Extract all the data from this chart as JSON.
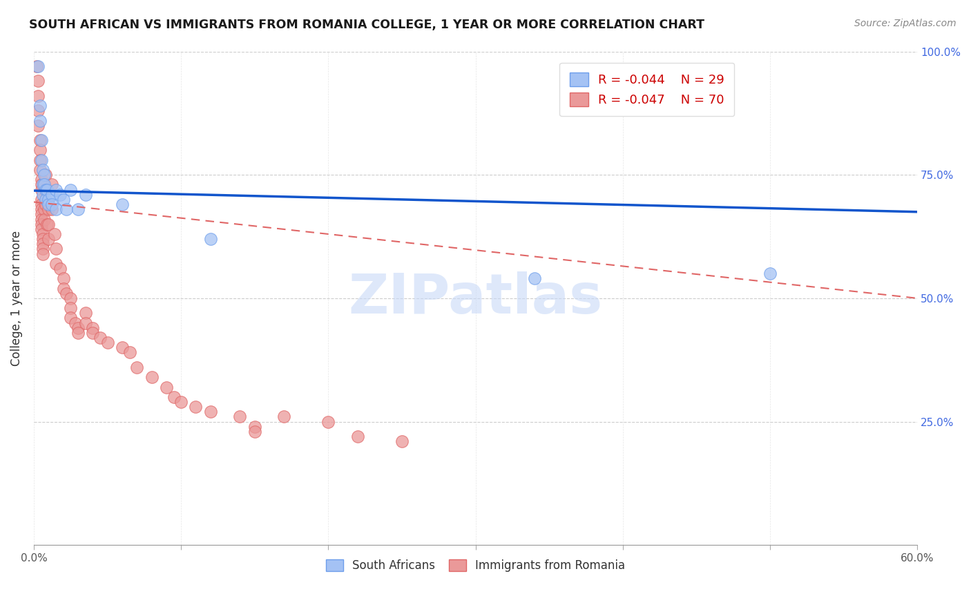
{
  "title": "SOUTH AFRICAN VS IMMIGRANTS FROM ROMANIA COLLEGE, 1 YEAR OR MORE CORRELATION CHART",
  "source": "Source: ZipAtlas.com",
  "ylabel": "College, 1 year or more",
  "xlim": [
    0.0,
    0.6
  ],
  "ylim": [
    0.0,
    1.0
  ],
  "xtick_positions": [
    0.0,
    0.1,
    0.2,
    0.3,
    0.4,
    0.5,
    0.6
  ],
  "xtick_labels": [
    "0.0%",
    "",
    "",
    "",
    "",
    "",
    "60.0%"
  ],
  "ytick_labels_right": [
    "100.0%",
    "75.0%",
    "50.0%",
    "25.0%"
  ],
  "ytick_positions_right": [
    1.0,
    0.75,
    0.5,
    0.25
  ],
  "legend_blue_r": "-0.044",
  "legend_blue_n": "29",
  "legend_pink_r": "-0.047",
  "legend_pink_n": "70",
  "legend_label_blue": "South Africans",
  "legend_label_pink": "Immigrants from Romania",
  "blue_fill_color": "#a4c2f4",
  "blue_edge_color": "#6d9eeb",
  "pink_fill_color": "#ea9999",
  "pink_edge_color": "#e06666",
  "blue_line_color": "#1155cc",
  "pink_line_color": "#e06666",
  "watermark_text": "ZIPatlas",
  "watermark_color": "#c9daf8",
  "blue_scatter": [
    [
      0.003,
      0.97
    ],
    [
      0.004,
      0.89
    ],
    [
      0.004,
      0.86
    ],
    [
      0.005,
      0.82
    ],
    [
      0.005,
      0.78
    ],
    [
      0.006,
      0.76
    ],
    [
      0.006,
      0.73
    ],
    [
      0.006,
      0.71
    ],
    [
      0.007,
      0.75
    ],
    [
      0.007,
      0.73
    ],
    [
      0.008,
      0.72
    ],
    [
      0.008,
      0.7
    ],
    [
      0.009,
      0.72
    ],
    [
      0.01,
      0.7
    ],
    [
      0.01,
      0.69
    ],
    [
      0.012,
      0.71
    ],
    [
      0.012,
      0.69
    ],
    [
      0.015,
      0.68
    ],
    [
      0.015,
      0.72
    ],
    [
      0.018,
      0.71
    ],
    [
      0.02,
      0.7
    ],
    [
      0.022,
      0.68
    ],
    [
      0.025,
      0.72
    ],
    [
      0.03,
      0.68
    ],
    [
      0.035,
      0.71
    ],
    [
      0.06,
      0.69
    ],
    [
      0.12,
      0.62
    ],
    [
      0.34,
      0.54
    ],
    [
      0.5,
      0.55
    ]
  ],
  "pink_scatter": [
    [
      0.002,
      0.97
    ],
    [
      0.003,
      0.94
    ],
    [
      0.003,
      0.91
    ],
    [
      0.003,
      0.88
    ],
    [
      0.003,
      0.85
    ],
    [
      0.004,
      0.82
    ],
    [
      0.004,
      0.8
    ],
    [
      0.004,
      0.78
    ],
    [
      0.004,
      0.76
    ],
    [
      0.005,
      0.74
    ],
    [
      0.005,
      0.73
    ],
    [
      0.005,
      0.72
    ],
    [
      0.005,
      0.7
    ],
    [
      0.005,
      0.69
    ],
    [
      0.005,
      0.68
    ],
    [
      0.005,
      0.67
    ],
    [
      0.005,
      0.66
    ],
    [
      0.005,
      0.65
    ],
    [
      0.005,
      0.64
    ],
    [
      0.006,
      0.63
    ],
    [
      0.006,
      0.62
    ],
    [
      0.006,
      0.61
    ],
    [
      0.006,
      0.6
    ],
    [
      0.006,
      0.59
    ],
    [
      0.007,
      0.68
    ],
    [
      0.007,
      0.66
    ],
    [
      0.008,
      0.75
    ],
    [
      0.008,
      0.72
    ],
    [
      0.008,
      0.69
    ],
    [
      0.009,
      0.65
    ],
    [
      0.01,
      0.68
    ],
    [
      0.01,
      0.65
    ],
    [
      0.01,
      0.62
    ],
    [
      0.012,
      0.73
    ],
    [
      0.012,
      0.68
    ],
    [
      0.014,
      0.63
    ],
    [
      0.015,
      0.6
    ],
    [
      0.015,
      0.57
    ],
    [
      0.018,
      0.56
    ],
    [
      0.02,
      0.54
    ],
    [
      0.02,
      0.52
    ],
    [
      0.022,
      0.51
    ],
    [
      0.025,
      0.5
    ],
    [
      0.025,
      0.48
    ],
    [
      0.025,
      0.46
    ],
    [
      0.028,
      0.45
    ],
    [
      0.03,
      0.44
    ],
    [
      0.03,
      0.43
    ],
    [
      0.035,
      0.47
    ],
    [
      0.035,
      0.45
    ],
    [
      0.04,
      0.44
    ],
    [
      0.04,
      0.43
    ],
    [
      0.045,
      0.42
    ],
    [
      0.05,
      0.41
    ],
    [
      0.06,
      0.4
    ],
    [
      0.065,
      0.39
    ],
    [
      0.07,
      0.36
    ],
    [
      0.08,
      0.34
    ],
    [
      0.09,
      0.32
    ],
    [
      0.095,
      0.3
    ],
    [
      0.1,
      0.29
    ],
    [
      0.11,
      0.28
    ],
    [
      0.12,
      0.27
    ],
    [
      0.14,
      0.26
    ],
    [
      0.15,
      0.24
    ],
    [
      0.15,
      0.23
    ],
    [
      0.17,
      0.26
    ],
    [
      0.2,
      0.25
    ],
    [
      0.22,
      0.22
    ],
    [
      0.25,
      0.21
    ]
  ],
  "blue_trendline_x": [
    0.0,
    0.6
  ],
  "blue_trendline_y": [
    0.718,
    0.675
  ],
  "pink_trendline_x": [
    0.0,
    0.6
  ],
  "pink_trendline_y": [
    0.695,
    0.5
  ],
  "background_color": "#ffffff",
  "grid_color": "#cccccc"
}
